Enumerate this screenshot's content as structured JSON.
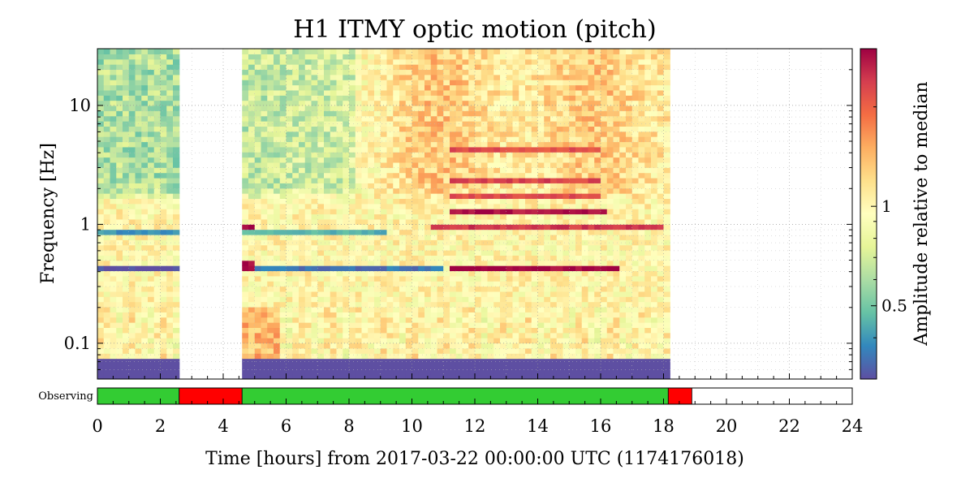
{
  "chart_data": {
    "type": "heatmap",
    "title": "H1 ITMY optic motion (pitch)",
    "xlabel": "Time [hours] from 2017-03-22 00:00:00 UTC (1174176018)",
    "ylabel": "Frequency [Hz]",
    "colorbar_label": "Amplitude relative to median",
    "x_range": [
      0,
      24
    ],
    "x_ticks": [
      0,
      2,
      4,
      6,
      8,
      10,
      12,
      14,
      16,
      18,
      20,
      22,
      24
    ],
    "y_scale": "log",
    "y_range": [
      0.05,
      30
    ],
    "y_ticks": [
      {
        "value": 0.1,
        "label": "0.1"
      },
      {
        "value": 1,
        "label": "1"
      },
      {
        "value": 10,
        "label": "10"
      }
    ],
    "colorbar_scale": "log",
    "colorbar_range": [
      0.3,
      3
    ],
    "colorbar_ticks": [
      {
        "value": 0.5,
        "label": "0.5"
      },
      {
        "value": 1,
        "label": "1"
      }
    ],
    "colormap": "Spectral_r",
    "grid": true,
    "data_gaps_hours": [
      [
        2.6,
        4.6
      ],
      [
        18.15,
        24
      ]
    ],
    "features": [
      {
        "name": "low amplitude band",
        "t": [
          0,
          2.6
        ],
        "freq": 0.45,
        "level": 0.3
      },
      {
        "name": "low amplitude band",
        "t": [
          4.6,
          11
        ],
        "freq": 0.45,
        "level": 0.35
      },
      {
        "name": "low amplitude band",
        "t": [
          0,
          2.6
        ],
        "freq": 0.85,
        "level": 0.4
      },
      {
        "name": "low amplitude band",
        "t": [
          4.6,
          9.2
        ],
        "freq": 0.85,
        "level": 0.45
      },
      {
        "name": "high amplitude band",
        "t": [
          11.2,
          16.6
        ],
        "freq": 0.45,
        "level": 3.0
      },
      {
        "name": "high amplitude band",
        "t": [
          10.6,
          18
        ],
        "freq": 0.95,
        "level": 2.4
      },
      {
        "name": "high amplitude band",
        "t": [
          11.1,
          16.2
        ],
        "freq": 1.3,
        "level": 2.8
      },
      {
        "name": "high amplitude band",
        "t": [
          11.1,
          16.0
        ],
        "freq": 1.8,
        "level": 2.2
      },
      {
        "name": "high amplitude band",
        "t": [
          11.1,
          16.0
        ],
        "freq": 2.45,
        "level": 2.3
      },
      {
        "name": "high amplitude band",
        "t": [
          11.1,
          16.0
        ],
        "freq": 4.3,
        "level": 2.2
      },
      {
        "name": "high amplitude burst",
        "t": [
          4.6,
          5.1
        ],
        "freq": 0.47,
        "level": 3.0
      },
      {
        "name": "high amplitude burst",
        "t": [
          4.6,
          5.1
        ],
        "freq": 0.95,
        "level": 3.0
      }
    ],
    "state_bar": {
      "label": "Observing",
      "segments": [
        {
          "start": 0,
          "end": 2.6,
          "state": "on",
          "color": "#33cc33"
        },
        {
          "start": 2.6,
          "end": 4.6,
          "state": "off",
          "color": "#ff0000"
        },
        {
          "start": 4.6,
          "end": 18.15,
          "state": "on",
          "color": "#33cc33"
        },
        {
          "start": 18.15,
          "end": 18.9,
          "state": "off",
          "color": "#ff0000"
        }
      ]
    }
  }
}
